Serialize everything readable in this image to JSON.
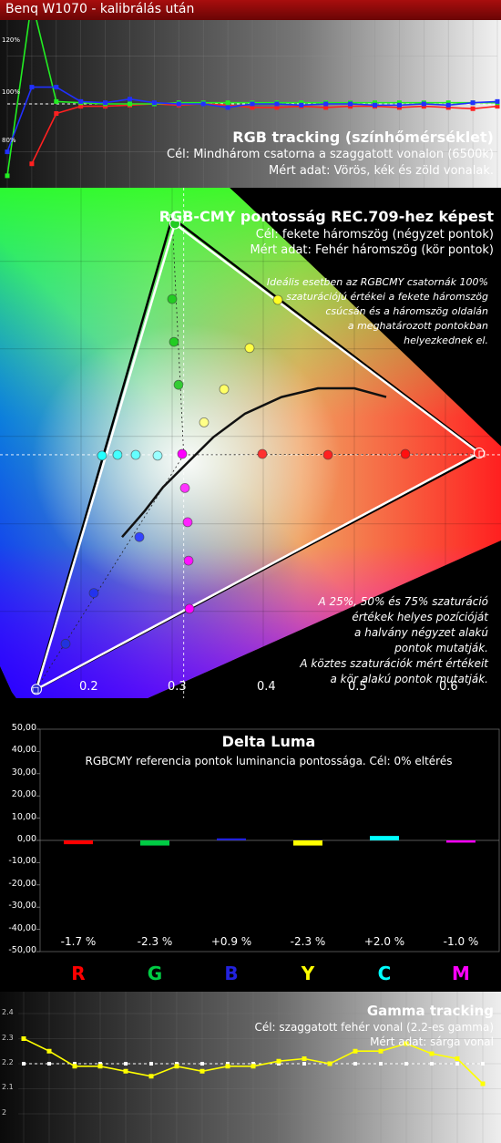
{
  "window_title": "Benq W1070 - kalibrálás után",
  "rgb_panel": {
    "title": "RGB tracking (színhőmérséklet)",
    "line1": "Cél: Mindhárom csatorna a szaggatott vonalon (6500k)",
    "line2": "Mért adat: Vörös, kék és zöld vonalak.",
    "y_labels": [
      "120%",
      "100%",
      "80%"
    ]
  },
  "gamut_panel": {
    "title": "RGB-CMY pontosság REC.709-hez képest",
    "line1": "Cél: fekete háromszög (négyzet pontok)",
    "line2": "Mért adat: Fehér háromszög (kör pontok)",
    "note_top": [
      "Ideális esetben az RGBCMY csatornák 100%",
      "szaturációjú értékei a fekete háromszög",
      "csúcsán  és a háromszög oldalán",
      "a meghatározott pontokban",
      "helyezkednek el."
    ],
    "note_bottom": [
      "A 25%, 50% és 75% szaturáció",
      "értékek helyes pozícióját",
      "a halvány négyzet alakú",
      "pontok mutatják.",
      "A köztes szaturációk mért értékeit",
      "a kör alakú pontok mutatják."
    ],
    "x_ticks": [
      "0.2",
      "0.3",
      "0.4",
      "0.5",
      "0.6"
    ]
  },
  "luma_panel": {
    "title": "Delta Luma",
    "subtitle": "RGBCMY referencia pontok luminancia pontossága. Cél: 0% eltérés",
    "y_labels": [
      "50,00",
      "40,00",
      "30,00",
      "20,00",
      "10,00",
      "0,00",
      "-10,00",
      "-20,00",
      "-30,00",
      "-40,00",
      "-50,00"
    ]
  },
  "gamma_panel": {
    "title": "Gamma tracking",
    "line1": "Cél: szaggatott fehér vonal (2.2-es gamma)",
    "line2": "Mért adat: sárga vonal",
    "y_labels": [
      "2.4",
      "2.3",
      "2.2",
      "2.1",
      "2"
    ]
  },
  "chart_data": [
    {
      "type": "line",
      "title": "RGB tracking (színhőmérséklet)",
      "ylim": [
        65,
        135
      ],
      "x": [
        0,
        5,
        10,
        15,
        20,
        25,
        30,
        35,
        40,
        45,
        50,
        55,
        60,
        65,
        70,
        75,
        80,
        85,
        90,
        95,
        100
      ],
      "target": 100,
      "series": [
        {
          "name": "Vörös",
          "color": "#ff2020",
          "values": [
            null,
            75,
            96,
            99,
            99,
            99.5,
            100,
            99.5,
            100,
            99.5,
            98.5,
            98.5,
            99,
            98.5,
            99,
            99,
            98.5,
            99,
            98.5,
            98,
            99
          ]
        },
        {
          "name": "Zöld",
          "color": "#22ee22",
          "values": [
            70,
            143,
            101,
            100.5,
            100,
            100,
            100,
            100.5,
            100.5,
            100.5,
            100.5,
            100.5,
            100.5,
            100.5,
            100.5,
            100.5,
            100.5,
            100.5,
            100.5,
            100.5,
            100.5
          ]
        },
        {
          "name": "Kék",
          "color": "#2030ff",
          "values": [
            80,
            107,
            107,
            101,
            100.5,
            102,
            100.5,
            100,
            100,
            98.5,
            100,
            100,
            99.5,
            100,
            100,
            99.5,
            99.5,
            100,
            99.5,
            100.5,
            101
          ]
        }
      ]
    },
    {
      "type": "scatter",
      "title": "RGB-CMY pontosság REC.709-hez képest",
      "x_ticks": [
        0.2,
        0.3,
        0.4,
        0.5,
        0.6
      ],
      "target_triangle": {
        "R": [
          0.64,
          0.33
        ],
        "G": [
          0.3,
          0.6
        ],
        "B": [
          0.15,
          0.06
        ],
        "W": [
          0.3127,
          0.329
        ]
      },
      "measured_triangle": {
        "R": [
          0.637,
          0.331
        ],
        "G": [
          0.303,
          0.593
        ],
        "B": [
          0.151,
          0.061
        ],
        "W": [
          0.311,
          0.33
        ]
      },
      "measured_points": [
        {
          "name": "R25",
          "x": 0.399,
          "y": 0.33,
          "color": "#ff3030"
        },
        {
          "name": "R50",
          "x": 0.471,
          "y": 0.329,
          "color": "#ff2020"
        },
        {
          "name": "R75",
          "x": 0.556,
          "y": 0.33,
          "color": "#ff1010"
        },
        {
          "name": "G25",
          "x": 0.307,
          "y": 0.409,
          "color": "#33cc33"
        },
        {
          "name": "G50",
          "x": 0.302,
          "y": 0.458,
          "color": "#22cc22"
        },
        {
          "name": "G75",
          "x": 0.3,
          "y": 0.507,
          "color": "#22cc22"
        },
        {
          "name": "B25",
          "x": 0.264,
          "y": 0.235,
          "color": "#3344ff"
        },
        {
          "name": "B50",
          "x": 0.214,
          "y": 0.171,
          "color": "#2233ee"
        },
        {
          "name": "B75",
          "x": 0.183,
          "y": 0.113,
          "color": "#2233dd"
        },
        {
          "name": "C25",
          "x": 0.284,
          "y": 0.328,
          "color": "#99ffff"
        },
        {
          "name": "C50",
          "x": 0.26,
          "y": 0.329,
          "color": "#66ffff"
        },
        {
          "name": "C75",
          "x": 0.24,
          "y": 0.329,
          "color": "#44ffff"
        },
        {
          "name": "C100",
          "x": 0.223,
          "y": 0.328,
          "color": "#22ffff"
        },
        {
          "name": "M25",
          "x": 0.314,
          "y": 0.291,
          "color": "#ff33ff"
        },
        {
          "name": "M50",
          "x": 0.317,
          "y": 0.252,
          "color": "#ff22ff"
        },
        {
          "name": "M75",
          "x": 0.318,
          "y": 0.208,
          "color": "#ff11ff"
        },
        {
          "name": "M100",
          "x": 0.319,
          "y": 0.153,
          "color": "#ff00ff"
        },
        {
          "name": "Y25",
          "x": 0.335,
          "y": 0.366,
          "color": "#ffff88"
        },
        {
          "name": "Y50",
          "x": 0.357,
          "y": 0.404,
          "color": "#ffff66"
        },
        {
          "name": "Y75",
          "x": 0.385,
          "y": 0.451,
          "color": "#ffff44"
        },
        {
          "name": "Y100",
          "x": 0.416,
          "y": 0.506,
          "color": "#ffff22"
        },
        {
          "name": "W",
          "x": 0.311,
          "y": 0.33,
          "color": "#ff00ff"
        }
      ],
      "planckian_locus": [
        [
          0.245,
          0.235
        ],
        [
          0.27,
          0.265
        ],
        [
          0.29,
          0.292
        ],
        [
          0.315,
          0.318
        ],
        [
          0.345,
          0.349
        ],
        [
          0.38,
          0.376
        ],
        [
          0.42,
          0.395
        ],
        [
          0.46,
          0.405
        ],
        [
          0.5,
          0.405
        ],
        [
          0.535,
          0.395
        ]
      ]
    },
    {
      "type": "bar",
      "title": "Delta Luma",
      "categories": [
        "R",
        "G",
        "B",
        "Y",
        "C",
        "M"
      ],
      "category_colors": [
        "#ff0000",
        "#00cc44",
        "#2222dd",
        "#ffff00",
        "#00ffff",
        "#ff00ff"
      ],
      "values": [
        -1.7,
        -2.3,
        0.9,
        -2.3,
        2.0,
        -1.0
      ],
      "value_labels": [
        "-1.7 %",
        "-2.3 %",
        "+0.9 %",
        "-2.3 %",
        "+2.0 %",
        "-1.0 %"
      ],
      "ylim": [
        -50,
        50
      ]
    },
    {
      "type": "line",
      "title": "Gamma tracking",
      "ylim": [
        1.95,
        2.45
      ],
      "x": [
        10,
        15,
        20,
        25,
        30,
        35,
        40,
        45,
        50,
        55,
        60,
        65,
        70,
        75,
        80,
        85,
        90,
        95,
        100
      ],
      "target": 2.2,
      "series": [
        {
          "name": "Mért",
          "color": "#ffff00",
          "values": [
            2.3,
            2.25,
            2.19,
            2.19,
            2.17,
            2.15,
            2.19,
            2.17,
            2.19,
            2.19,
            2.21,
            2.22,
            2.2,
            2.25,
            2.25,
            2.28,
            2.24,
            2.22,
            2.12
          ]
        }
      ]
    }
  ]
}
